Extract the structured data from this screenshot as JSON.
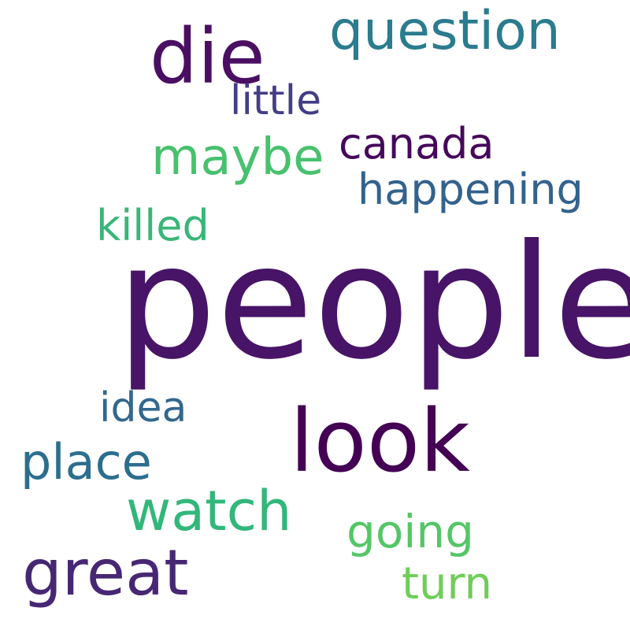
{
  "words": {
    "people": {
      "text": "people",
      "color": "#471467"
    },
    "look": {
      "text": "look",
      "color": "#440154"
    },
    "die": {
      "text": "die",
      "color": "#4a0f62"
    },
    "question": {
      "text": "question",
      "color": "#2a7c8e"
    },
    "great": {
      "text": "great",
      "color": "#472774"
    },
    "watch": {
      "text": "watch",
      "color": "#32b77b"
    },
    "maybe": {
      "text": "maybe",
      "color": "#48c16e"
    },
    "place": {
      "text": "place",
      "color": "#2c6e8e"
    },
    "canada": {
      "text": "canada",
      "color": "#46085c"
    },
    "happening": {
      "text": "happening",
      "color": "#33628d"
    },
    "going": {
      "text": "going",
      "color": "#55c667"
    },
    "killed": {
      "text": "killed",
      "color": "#39b678"
    },
    "little": {
      "text": "little",
      "color": "#433e85"
    },
    "idea": {
      "text": "idea",
      "color": "#31688e"
    },
    "turn": {
      "text": "turn",
      "color": "#6ece58"
    }
  }
}
